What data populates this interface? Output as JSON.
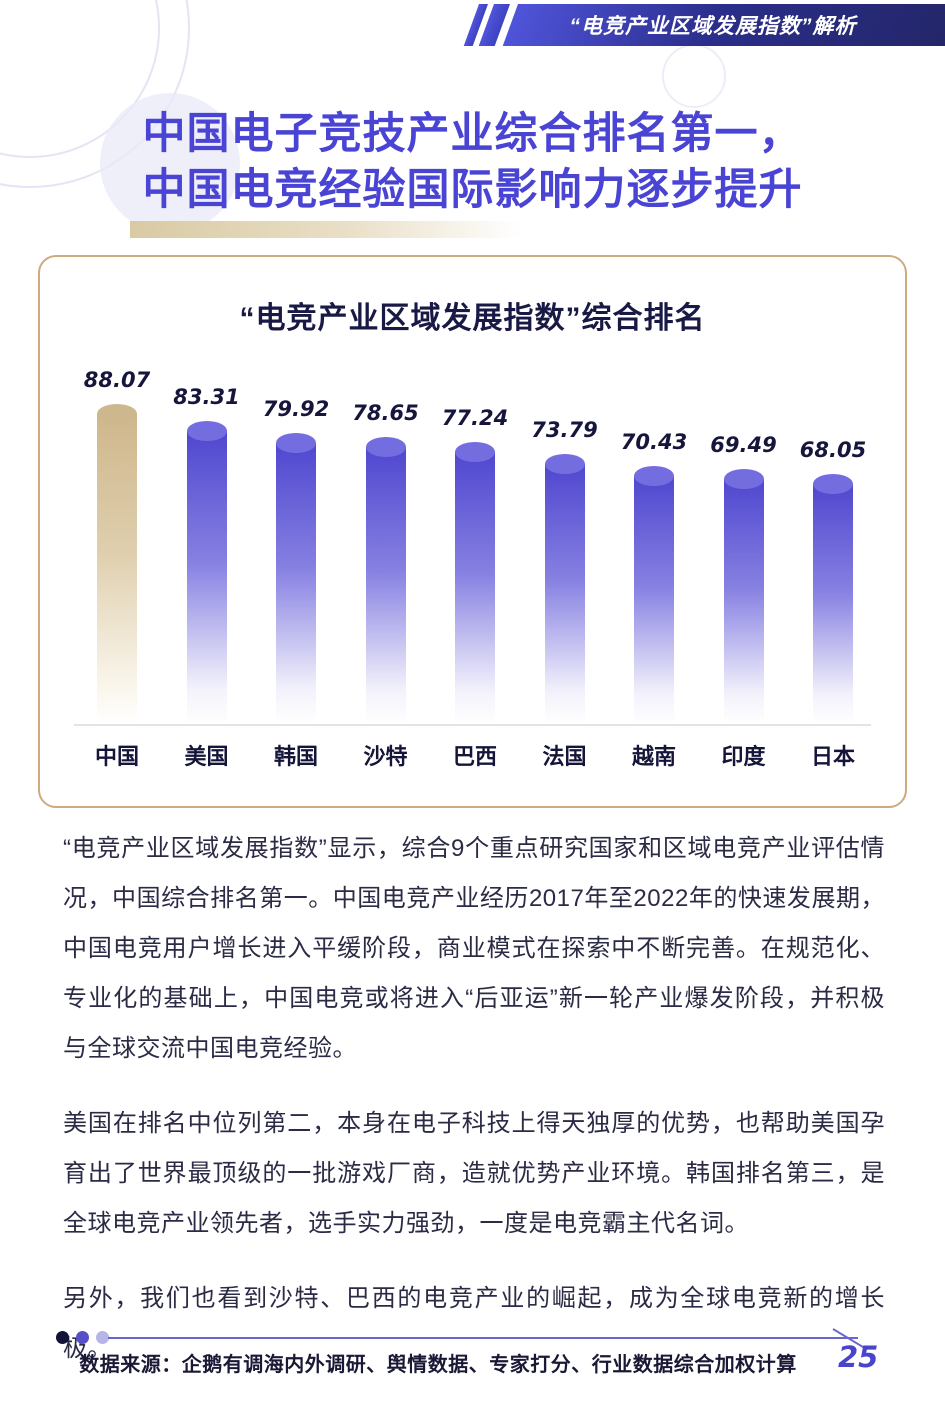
{
  "header": {
    "banner_label": "“电竞产业区域发展指数”解析"
  },
  "title": {
    "line1": "中国电子竞技产业综合排名第一，",
    "line2": "中国电竞经验国际影响力逐步提升"
  },
  "chart_data": {
    "type": "bar",
    "title": "“电竞产业区域发展指数”综合排名",
    "categories": [
      "中国",
      "美国",
      "韩国",
      "沙特",
      "巴西",
      "法国",
      "越南",
      "印度",
      "日本"
    ],
    "values": [
      88.07,
      83.31,
      79.92,
      78.65,
      77.24,
      73.79,
      70.43,
      69.49,
      68.05
    ],
    "highlight_category": "中国",
    "value_labels": true,
    "grid": false,
    "legend": "none",
    "ylim": [
      0,
      95
    ],
    "bar_style": "cylinder-gradient-fade",
    "colors": {
      "bar_top": "#4f47cf",
      "bar_mid": "#8781e2",
      "bar_fade": "#f3f2fb",
      "bar_cap": "#746de0",
      "highlight_top": "#cfb78c",
      "highlight_mid": "#dfcfae",
      "highlight_fade": "#faf6ec",
      "highlight_cap": "#cdb78e"
    }
  },
  "content": {
    "paragraphs": [
      "“电竞产业区域发展指数”显示，综合9个重点研究国家和区域电竞产业评估情况，中国综合排名第一。中国电竞产业经历2017年至2022年的快速发展期，中国电竞用户增长进入平缓阶段，商业模式在探索中不断完善。在规范化、专业化的基础上，中国电竞或将进入“后亚运”新一轮产业爆发阶段，并积极与全球交流中国电竞经验。",
      "美国在排名中位列第二，本身在电子科技上得天独厚的优势，也帮助美国孕育出了世界最顶级的一批游戏厂商，造就优势产业环境。韩国排名第三，是全球电竞产业领先者，选手实力强劲，一度是电竞霸主代名词。",
      "另外，我们也看到沙特、巴西的电竞产业的崛起，成为全球电竞新的增长极。"
    ]
  },
  "footer": {
    "source": "数据来源：企鹅有调海内外调研、舆情数据、专家打分、行业数据综合加权计算",
    "page_number": "25"
  },
  "colors": {
    "accent": "#4a44d4",
    "banner_from": "#4f54da",
    "banner_to": "#232668",
    "card_border": "#cdab7e",
    "text": "#2b2b45",
    "footer_line": "#6a65cf",
    "dot1": "#12123a",
    "dot2": "#564fc8",
    "dot3": "#b7b4e8"
  }
}
